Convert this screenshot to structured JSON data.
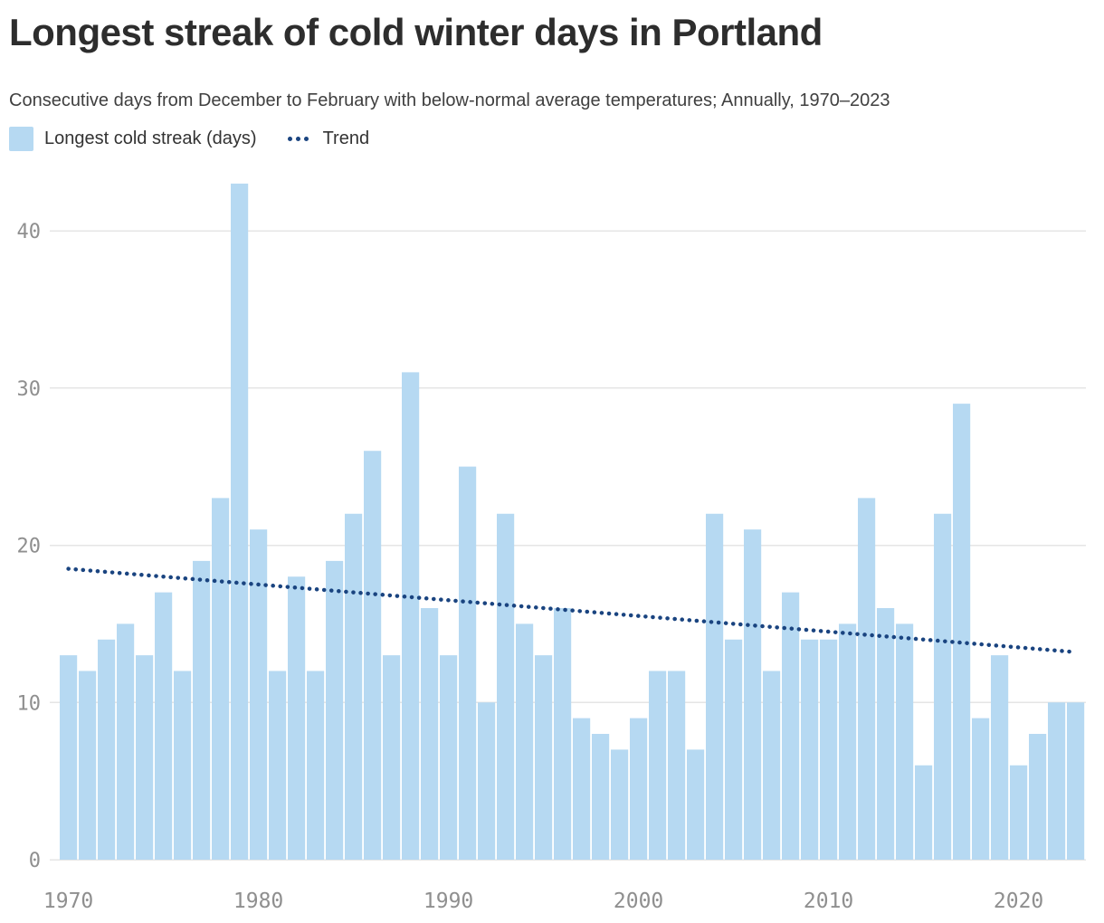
{
  "header": {
    "title": "Longest streak of cold winter days in Portland",
    "subtitle": "Consecutive days from December to February with below-normal average temperatures; Annually, 1970–2023"
  },
  "legend": {
    "bar_label": "Longest cold streak (days)",
    "trend_label": "Trend"
  },
  "colors": {
    "bar": "#b6d9f2",
    "trend": "#1a4480",
    "grid": "#e5e5e5",
    "axis_text": "#8f8f8f",
    "title_text": "#2d2d2d",
    "subtitle_text": "#3f3f3f"
  },
  "chart_data": {
    "type": "bar",
    "title": "Longest streak of cold winter days in Portland",
    "subtitle": "Consecutive days from December to February with below-normal average temperatures; Annually, 1970–2023",
    "xlabel": "",
    "ylabel": "",
    "ylim": [
      0,
      45
    ],
    "yticks": [
      0,
      10,
      20,
      30,
      40
    ],
    "xticks": [
      1970,
      1980,
      1990,
      2000,
      2010,
      2020
    ],
    "grid": "horizontal",
    "legend_position": "top-left",
    "years": [
      1970,
      1971,
      1972,
      1973,
      1974,
      1975,
      1976,
      1977,
      1978,
      1979,
      1980,
      1981,
      1982,
      1983,
      1984,
      1985,
      1986,
      1987,
      1988,
      1989,
      1990,
      1991,
      1992,
      1993,
      1994,
      1995,
      1996,
      1997,
      1998,
      1999,
      2000,
      2001,
      2002,
      2003,
      2004,
      2005,
      2006,
      2007,
      2008,
      2009,
      2010,
      2011,
      2012,
      2013,
      2014,
      2015,
      2016,
      2017,
      2018,
      2019,
      2020,
      2021,
      2022,
      2023
    ],
    "series": [
      {
        "name": "Longest cold streak (days)",
        "values": [
          13,
          12,
          14,
          15,
          13,
          17,
          12,
          19,
          23,
          43,
          21,
          12,
          18,
          12,
          19,
          22,
          26,
          13,
          31,
          16,
          13,
          25,
          10,
          22,
          15,
          13,
          16,
          9,
          8,
          7,
          9,
          12,
          12,
          7,
          22,
          14,
          21,
          12,
          17,
          14,
          14,
          15,
          23,
          16,
          15,
          6,
          22,
          29,
          9,
          13,
          6,
          8,
          10,
          10
        ]
      }
    ],
    "trend": {
      "name": "Trend",
      "start_year": 1970,
      "end_year": 2023,
      "start_value": 18.5,
      "end_value": 13.2,
      "style": "dotted"
    }
  }
}
